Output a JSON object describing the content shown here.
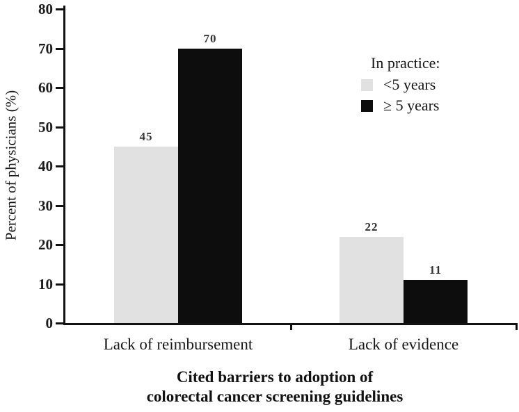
{
  "chart_data": {
    "type": "bar",
    "categories": [
      "Lack of reimbursement",
      "Lack of evidence"
    ],
    "series": [
      {
        "name": "<5 years",
        "color": "#e1e1e1",
        "values": [
          45,
          22
        ]
      },
      {
        "name": "≥ 5 years",
        "color": "#0d0d0d",
        "values": [
          70,
          11
        ]
      }
    ],
    "legend_title": "In practice:",
    "legend_position": "upper right",
    "ylabel": "Percent of physicians (%)",
    "xlabel": "Cited barriers to adoption of colorectal cancer screening guidelines",
    "xlabel_lines": [
      "Cited barriers to adoption of",
      "colorectal cancer screening guidelines"
    ],
    "ylim": [
      0,
      80
    ],
    "yticks": [
      0,
      10,
      20,
      30,
      40,
      50,
      60,
      70,
      80
    ],
    "grid": false,
    "value_labels": true
  }
}
